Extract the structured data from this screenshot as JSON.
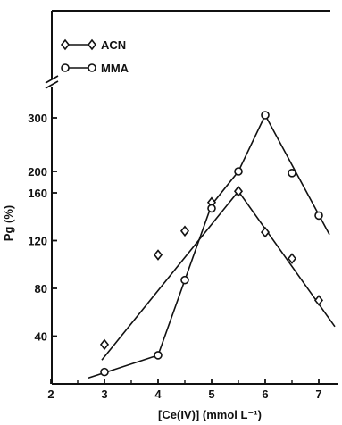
{
  "chart_data": {
    "type": "line",
    "title": "",
    "xlabel": "[Ce(IV)]  (mmol L⁻¹)",
    "ylabel": "Pg (%)",
    "x_ticks": [
      "2",
      "3",
      "4",
      "5",
      "6",
      "7"
    ],
    "y_ticks_lower": [
      "40",
      "80",
      "120",
      "160"
    ],
    "y_ticks_upper": [
      "200",
      "300"
    ],
    "axis_break": "between 160 and 200 (lower segment 0-170 linear, upper segment 170-330 compressed)",
    "xlim": [
      2,
      7.4
    ],
    "grid": false,
    "legend_position": "top-left",
    "series": [
      {
        "name": "ACN",
        "marker": "diamond",
        "x": [
          3.0,
          4.0,
          4.5,
          5.0,
          5.5,
          6.0,
          6.5,
          7.0
        ],
        "y": [
          33,
          108,
          128,
          152,
          163,
          127,
          105,
          70
        ]
      },
      {
        "name": "MMA",
        "marker": "circle",
        "x": [
          3.0,
          4.0,
          4.5,
          5.0,
          5.5,
          6.0,
          6.5,
          7.0
        ],
        "y": [
          10,
          24,
          87,
          147,
          200,
          305,
          197,
          141
        ]
      }
    ],
    "fit_lines": [
      {
        "series": "ACN",
        "points": [
          [
            2.95,
            20
          ],
          [
            5.5,
            163
          ],
          [
            7.3,
            48
          ]
        ]
      },
      {
        "series": "MMA",
        "points": [
          [
            2.7,
            5
          ],
          [
            4.0,
            24
          ],
          [
            5.0,
            150
          ],
          [
            5.5,
            200
          ],
          [
            6.0,
            305
          ],
          [
            7.2,
            125
          ]
        ]
      }
    ]
  }
}
